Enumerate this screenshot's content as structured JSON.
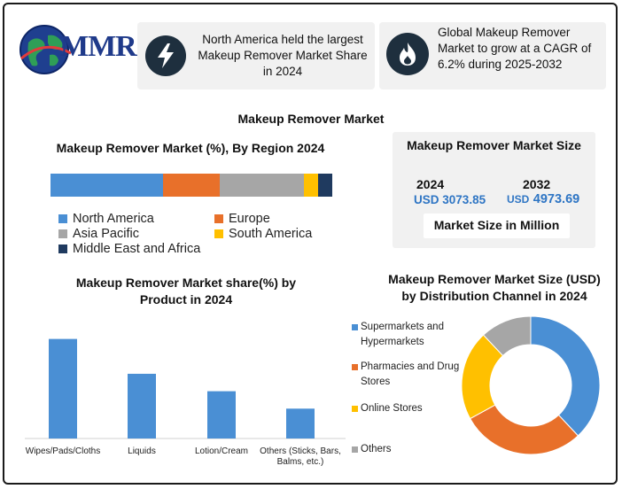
{
  "logo": {
    "text": "MMR"
  },
  "highlights": [
    {
      "icon": "lightning-icon",
      "text": "North America held the largest Makeup Remover Market Share in 2024"
    },
    {
      "icon": "flame-icon",
      "text": "Global Makeup Remover Market to grow at a CAGR of 6.2% during 2025-2032"
    }
  ],
  "main_title": "Makeup Remover Market",
  "market_size": {
    "title": "Makeup Remover Market Size",
    "year1": "2024",
    "value1_prefix": "USD",
    "value1": "3073.85",
    "year2": "2032",
    "value2_prefix": "USD",
    "value2": "4973.69",
    "unit_label": "Market Size in Million"
  },
  "colors": {
    "blue": "#4a8fd4",
    "orange": "#e8702a",
    "gray": "#a6a6a6",
    "yellow": "#ffc000",
    "navy": "#1f3a5f"
  },
  "chart_data": [
    {
      "type": "bar",
      "orientation": "horizontal-stacked",
      "title": "Makeup Remover  Market (%), By Region 2024",
      "categories": [
        "North America",
        "Europe",
        "Asia Pacific",
        "South America",
        "Middle East and Africa"
      ],
      "values": [
        40,
        20,
        30,
        5,
        5
      ],
      "colors": [
        "#4a8fd4",
        "#e8702a",
        "#a6a6a6",
        "#ffc000",
        "#1f3a5f"
      ],
      "legend": "bottom"
    },
    {
      "type": "bar",
      "title": "Makeup Remover Market share(%)  by Product in 2024",
      "categories": [
        "Wipes/Pads/Cloths",
        "Liquids",
        "Lotion/Cream",
        "Others (Sticks, Bars, Balms, etc.)"
      ],
      "values": [
        40,
        26,
        19,
        12
      ],
      "ylim": [
        0,
        42
      ],
      "grid": false,
      "color": "#4a8fd4"
    },
    {
      "type": "pie",
      "title": "Makeup Remover  Market Size (USD)  by Distribution Channel in 2024",
      "categories": [
        "Supermarkets and Hypermarkets",
        "Pharmacies and Drug Stores",
        "Online Stores",
        "Others"
      ],
      "values": [
        38,
        29,
        21,
        12
      ],
      "colors": [
        "#4a8fd4",
        "#e8702a",
        "#ffc000",
        "#a6a6a6"
      ],
      "legend": "left"
    }
  ]
}
